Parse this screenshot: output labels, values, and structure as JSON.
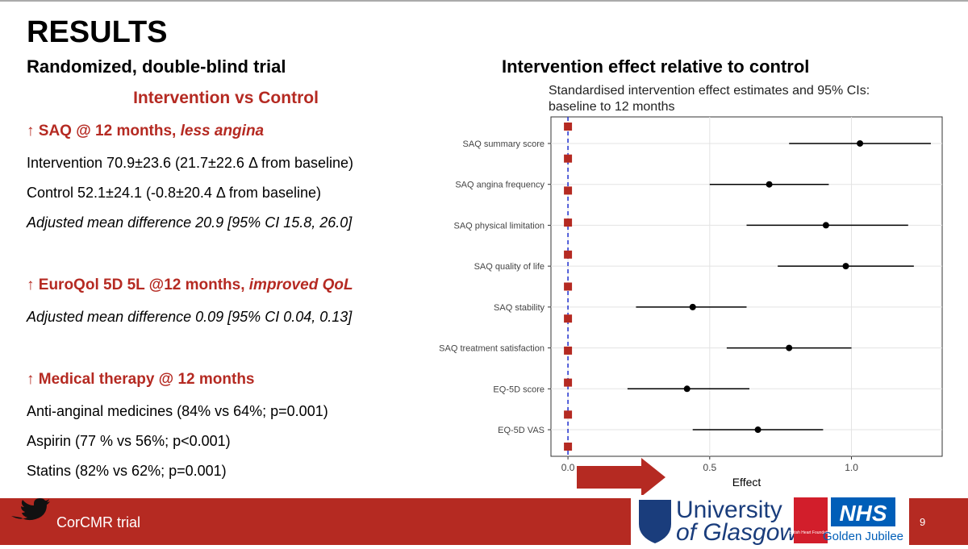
{
  "slide": {
    "title": "RESULTS",
    "left_heading": "Randomized, double-blind trial",
    "right_heading": "Intervention effect relative to control",
    "comparison": "Intervention vs Control",
    "sections": [
      {
        "heading": "↑ SAQ @ 12 months, ",
        "heading_emphasis": "less angina",
        "lines": [
          "Intervention 70.9±23.6 (21.7±22.6 Δ from baseline)",
          "Control 52.1±24.1 (-0.8±20.4 Δ from baseline)"
        ],
        "italic_line": "Adjusted mean difference 20.9 [95% CI 15.8, 26.0]"
      },
      {
        "heading": "↑ EuroQol 5D 5L @12 months, ",
        "heading_emphasis": "improved QoL",
        "lines": [],
        "italic_line": "Adjusted mean difference 0.09 [95% CI 0.04, 0.13]"
      },
      {
        "heading": "↑ Medical therapy @ 12 months",
        "heading_emphasis": "",
        "lines": [
          "Anti-anginal medicines (84% vs 64%; p=0.001)",
          "Aspirin (77 % vs 56%; p<0.001)",
          "Statins (82% vs 62%; p=0.001)"
        ],
        "italic_line": ""
      }
    ],
    "footer": "CorCMR trial",
    "page_number": "9",
    "logos": {
      "university": "University",
      "university_2": "of Glasgow",
      "bhf": "British Heart Foundation",
      "nhs": "NHS",
      "nhs_2": "Golden Jubilee"
    }
  },
  "chart_data": {
    "type": "forest",
    "title_lines": [
      "Standardised intervention effect estimates and 95% CIs:",
      "baseline to 12 months"
    ],
    "x_label": "Effect",
    "categories": [
      "SAQ summary score",
      "SAQ angina frequency",
      "SAQ physical limitation",
      "SAQ quality of life",
      "SAQ stability",
      "SAQ treatment satisfaction",
      "EQ-5D score",
      "EQ-5D VAS"
    ],
    "values": [
      1.03,
      0.71,
      0.91,
      0.98,
      0.44,
      0.78,
      0.42,
      0.67
    ],
    "lower": [
      0.78,
      0.5,
      0.63,
      0.74,
      0.24,
      0.56,
      0.21,
      0.44
    ],
    "upper": [
      1.28,
      0.92,
      1.2,
      1.22,
      0.63,
      1.0,
      0.64,
      0.9
    ],
    "reference": 0,
    "reference_markers": 11,
    "xlim": [
      -0.06,
      1.32
    ],
    "xticks": [
      {
        "value": 0,
        "label": "0.0"
      },
      0.5,
      {
        "value": 1,
        "label": "1.0"
      }
    ],
    "grid": true,
    "color": "#000000",
    "reference_color": "#1f2fcf",
    "marker_color": "#b52a22"
  }
}
